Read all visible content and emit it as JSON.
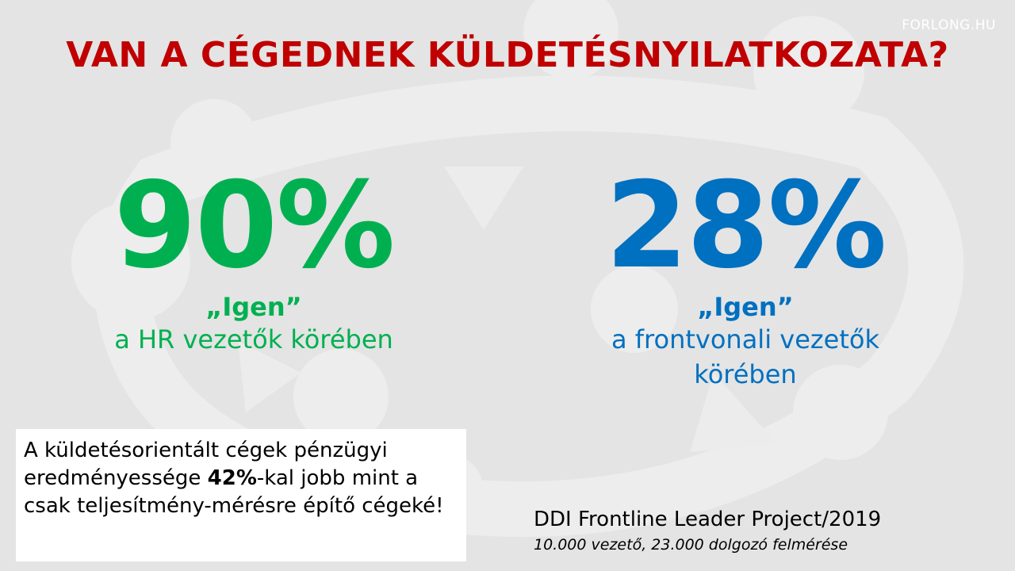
{
  "brand": "FORLONG.HU",
  "title": "VAN A CÉGEDNEK KÜLDETÉSNYILATKOZATA?",
  "colors": {
    "title": "#c00000",
    "green": "#00b050",
    "blue": "#0070c0",
    "background": "#e4e4e4"
  },
  "stats": [
    {
      "value": "90%",
      "answer": "„Igen”",
      "group_line1": "a HR vezetők körében",
      "group_line2": ""
    },
    {
      "value": "28%",
      "answer": "„Igen”",
      "group_line1": "a frontvonali vezetők",
      "group_line2": "körében"
    }
  ],
  "note": {
    "part1": "A küldetésorientált cégek pénzügyi eredményessége ",
    "highlight": "42%",
    "part2": "-kal jobb mint a csak teljesítmény-mérésre építő cégeké!"
  },
  "source": {
    "title": "DDI Frontline Leader Project/2019",
    "subtitle": "10.000 vezető, 23.000 dolgozó felmérése"
  }
}
